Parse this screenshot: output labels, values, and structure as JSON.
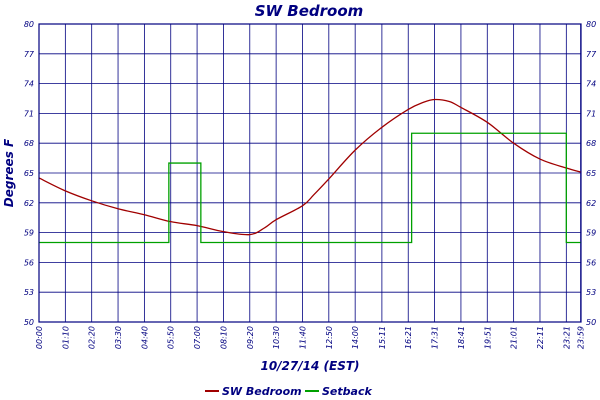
{
  "chart_data": {
    "type": "line",
    "title": "SW Bedroom",
    "xlabel": "10/27/14 (EST)",
    "ylabel": "Degrees F",
    "ylim": [
      50,
      80
    ],
    "y_ticks": [
      "50",
      "53",
      "56",
      "59",
      "62",
      "65",
      "68",
      "71",
      "74",
      "77",
      "80"
    ],
    "x_range_minutes": [
      0,
      1440
    ],
    "x_ticks": [
      "00:00",
      "01:10",
      "02:20",
      "03:30",
      "04:40",
      "05:50",
      "07:00",
      "08:10",
      "09:20",
      "10:30",
      "11:40",
      "12:50",
      "14:00",
      "15:11",
      "16:21",
      "17:31",
      "18:41",
      "19:51",
      "21:01",
      "22:11",
      "23:21",
      "23:59"
    ],
    "grid": true,
    "legend_position": "bottom",
    "series": [
      {
        "name": "SW Bedroom",
        "color": "#a00000",
        "x": [
          "00:00",
          "01:10",
          "02:20",
          "03:30",
          "04:40",
          "05:50",
          "07:00",
          "08:10",
          "09:20",
          "10:00",
          "10:30",
          "11:40",
          "12:10",
          "12:50",
          "14:00",
          "15:11",
          "16:21",
          "17:00",
          "17:31",
          "18:10",
          "18:41",
          "19:51",
          "21:01",
          "22:11",
          "23:21",
          "23:59"
        ],
        "y": [
          64.5,
          63.2,
          62.2,
          61.4,
          60.8,
          60.1,
          59.7,
          59.1,
          58.8,
          59.5,
          60.3,
          61.7,
          62.8,
          64.4,
          67.3,
          69.6,
          71.4,
          72.1,
          72.4,
          72.2,
          71.6,
          70.1,
          68.0,
          66.4,
          65.5,
          65.1
        ]
      },
      {
        "name": "Setback",
        "color": "#00a000",
        "steps": [
          {
            "from": "00:00",
            "to": "05:45",
            "value": 58
          },
          {
            "from": "05:45",
            "to": "07:10",
            "value": 66
          },
          {
            "from": "07:10",
            "to": "16:30",
            "value": 58
          },
          {
            "from": "16:30",
            "to": "23:21",
            "value": 69
          },
          {
            "from": "23:21",
            "to": "23:59",
            "value": 58
          }
        ]
      }
    ]
  }
}
